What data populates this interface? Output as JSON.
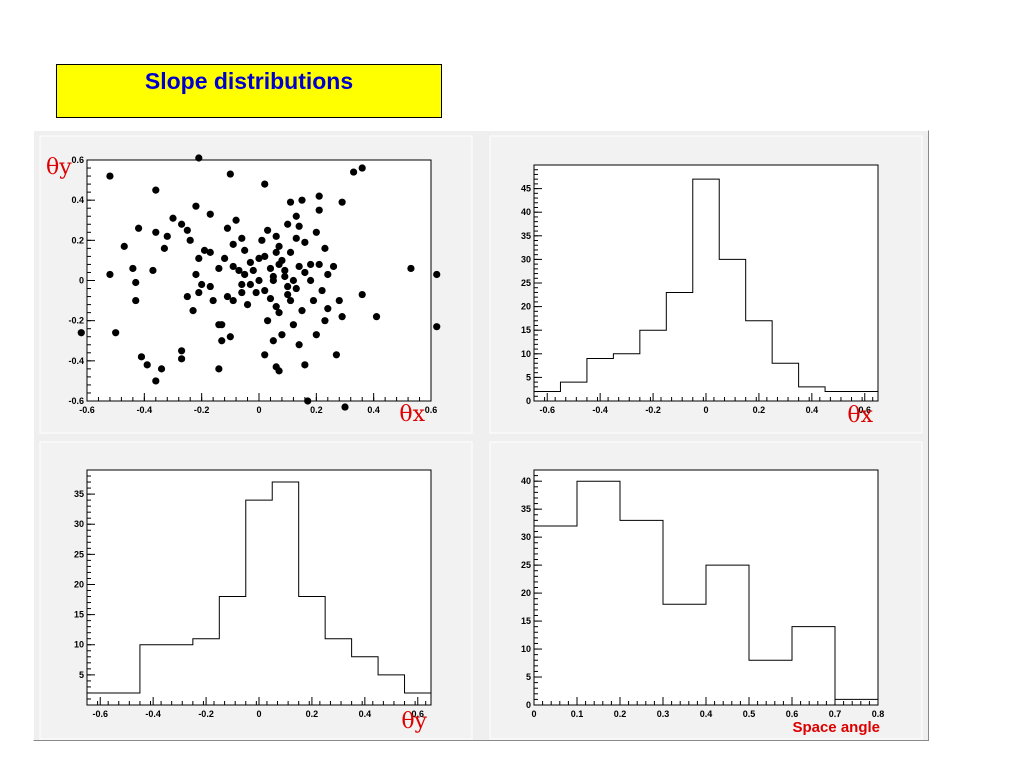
{
  "page": {
    "title": "Slope distributions"
  },
  "colors": {
    "title_bg": "#ffff00",
    "title_text": "#0000cc",
    "axis_title": "#dd0000",
    "pad_bg": "#efefef",
    "frame_bg": "#ffffff"
  },
  "chart_data": [
    {
      "id": "scatter",
      "type": "scatter",
      "title": "",
      "xlabel": "θx",
      "ylabel": "θy",
      "xlim": [
        -0.6,
        0.6
      ],
      "ylim": [
        -0.6,
        0.6
      ],
      "xticks": [
        -0.6,
        -0.4,
        -0.2,
        0,
        0.2,
        0.4,
        0.6
      ],
      "xtick_labels": [
        "-0.6",
        "-0.4",
        "-0.2",
        "0",
        "0.2",
        "0.4",
        "0.6"
      ],
      "yticks": [
        -0.6,
        -0.4,
        -0.2,
        0,
        0.2,
        0.4,
        0.6
      ],
      "ytick_labels": [
        "-0.6",
        "-0.4",
        "-0.2",
        "0",
        "0.2",
        "0.4",
        "0.6"
      ],
      "points": [
        [
          -0.52,
          0.52
        ],
        [
          -0.47,
          0.17
        ],
        [
          -0.42,
          0.26
        ],
        [
          -0.44,
          0.06
        ],
        [
          -0.43,
          -0.01
        ],
        [
          -0.43,
          -0.1
        ],
        [
          -0.52,
          0.03
        ],
        [
          -0.62,
          -0.26
        ],
        [
          -0.5,
          -0.26
        ],
        [
          -0.36,
          0.45
        ],
        [
          -0.36,
          0.24
        ],
        [
          -0.37,
          0.05
        ],
        [
          -0.32,
          0.22
        ],
        [
          -0.33,
          0.16
        ],
        [
          -0.3,
          0.31
        ],
        [
          -0.27,
          0.28
        ],
        [
          -0.25,
          0.25
        ],
        [
          -0.24,
          0.2
        ],
        [
          -0.21,
          0.61
        ],
        [
          -0.22,
          0.37
        ],
        [
          -0.17,
          0.33
        ],
        [
          -0.17,
          0.14
        ],
        [
          -0.21,
          0.11
        ],
        [
          -0.22,
          0.03
        ],
        [
          -0.2,
          -0.02
        ],
        [
          -0.17,
          -0.03
        ],
        [
          -0.21,
          -0.06
        ],
        [
          -0.25,
          -0.08
        ],
        [
          -0.23,
          -0.15
        ],
        [
          -0.27,
          -0.35
        ],
        [
          -0.27,
          -0.39
        ],
        [
          -0.14,
          -0.22
        ],
        [
          -0.13,
          -0.3
        ],
        [
          -0.14,
          -0.44
        ],
        [
          -0.34,
          -0.44
        ],
        [
          -0.39,
          -0.42
        ],
        [
          -0.41,
          -0.38
        ],
        [
          -0.36,
          -0.5
        ],
        [
          -0.1,
          0.53
        ],
        [
          -0.08,
          0.3
        ],
        [
          -0.11,
          0.26
        ],
        [
          -0.09,
          0.18
        ],
        [
          -0.12,
          0.11
        ],
        [
          -0.09,
          0.07
        ],
        [
          -0.11,
          -0.08
        ],
        [
          -0.09,
          -0.1
        ],
        [
          -0.06,
          -0.06
        ],
        [
          -0.13,
          -0.22
        ],
        [
          -0.1,
          -0.28
        ],
        [
          -0.06,
          0.21
        ],
        [
          -0.05,
          0.15
        ],
        [
          -0.03,
          0.09
        ],
        [
          -0.05,
          0.03
        ],
        [
          -0.03,
          -0.02
        ],
        [
          -0.06,
          -0.02
        ],
        [
          -0.02,
          0.05
        ],
        [
          0.0,
          0.11
        ],
        [
          0.01,
          0.2
        ],
        [
          0.02,
          0.48
        ],
        [
          0.03,
          0.25
        ],
        [
          0.04,
          0.06
        ],
        [
          0.05,
          0.02
        ],
        [
          0.06,
          0.14
        ],
        [
          0.07,
          0.08
        ],
        [
          0.08,
          0.1
        ],
        [
          0.09,
          0.05
        ],
        [
          0.02,
          -0.05
        ],
        [
          0.04,
          -0.09
        ],
        [
          0.06,
          -0.13
        ],
        [
          0.07,
          -0.16
        ],
        [
          0.03,
          -0.2
        ],
        [
          0.08,
          -0.27
        ],
        [
          0.05,
          -0.3
        ],
        [
          0.02,
          -0.37
        ],
        [
          0.06,
          -0.43
        ],
        [
          0.07,
          -0.45
        ],
        [
          0.11,
          0.39
        ],
        [
          0.13,
          0.32
        ],
        [
          0.15,
          0.4
        ],
        [
          0.14,
          0.27
        ],
        [
          0.13,
          0.21
        ],
        [
          0.16,
          0.19
        ],
        [
          0.11,
          0.14
        ],
        [
          0.14,
          0.07
        ],
        [
          0.16,
          0.04
        ],
        [
          0.12,
          0.0
        ],
        [
          0.13,
          -0.04
        ],
        [
          0.1,
          -0.07
        ],
        [
          0.11,
          -0.1
        ],
        [
          0.15,
          -0.15
        ],
        [
          0.12,
          -0.22
        ],
        [
          0.14,
          -0.32
        ],
        [
          0.16,
          -0.42
        ],
        [
          0.21,
          0.42
        ],
        [
          0.21,
          0.35
        ],
        [
          0.2,
          0.24
        ],
        [
          0.23,
          0.16
        ],
        [
          0.21,
          0.08
        ],
        [
          0.24,
          0.03
        ],
        [
          0.22,
          -0.05
        ],
        [
          0.19,
          -0.1
        ],
        [
          0.24,
          -0.14
        ],
        [
          0.23,
          -0.2
        ],
        [
          0.2,
          -0.27
        ],
        [
          0.17,
          -0.6
        ],
        [
          0.26,
          0.07
        ],
        [
          0.28,
          -0.1
        ],
        [
          0.29,
          -0.18
        ],
        [
          0.27,
          -0.37
        ],
        [
          0.3,
          -0.63
        ],
        [
          0.29,
          0.39
        ],
        [
          0.33,
          0.54
        ],
        [
          0.36,
          0.56
        ],
        [
          0.36,
          -0.07
        ],
        [
          0.41,
          -0.18
        ],
        [
          0.53,
          0.06
        ],
        [
          0.62,
          0.03
        ],
        [
          0.62,
          -0.23
        ],
        [
          0.05,
          0.0
        ],
        [
          -0.01,
          -0.06
        ],
        [
          0.09,
          0.02
        ],
        [
          -0.07,
          0.05
        ],
        [
          0.1,
          -0.03
        ],
        [
          -0.14,
          0.06
        ],
        [
          0.18,
          0.0
        ],
        [
          0.07,
          0.17
        ],
        [
          -0.19,
          0.15
        ],
        [
          0.0,
          0.0
        ],
        [
          0.02,
          0.12
        ],
        [
          -0.04,
          -0.12
        ],
        [
          0.18,
          0.08
        ],
        [
          0.1,
          0.28
        ],
        [
          -0.16,
          -0.1
        ],
        [
          0.06,
          0.22
        ]
      ]
    },
    {
      "id": "hist-thetax",
      "type": "bar",
      "title": "",
      "xlabel": "θx",
      "ylabel": "",
      "xlim": [
        -0.65,
        0.65
      ],
      "ylim": [
        0,
        50
      ],
      "xticks": [
        -0.6,
        -0.4,
        -0.2,
        0,
        0.2,
        0.4,
        0.6
      ],
      "xtick_labels": [
        "-0.6",
        "-0.4",
        "-0.2",
        "0",
        "0.2",
        "0.4",
        "0.6"
      ],
      "yticks": [
        0,
        5,
        10,
        15,
        20,
        25,
        30,
        35,
        40,
        45
      ],
      "ytick_labels": [
        "0",
        "5",
        "10",
        "15",
        "20",
        "25",
        "30",
        "35",
        "40",
        "45"
      ],
      "bin_edges": [
        -0.65,
        -0.55,
        -0.45,
        -0.35,
        -0.25,
        -0.15,
        -0.05,
        0.05,
        0.15,
        0.25,
        0.35,
        0.45,
        0.55,
        0.65
      ],
      "values": [
        2,
        4,
        9,
        10,
        15,
        23,
        47,
        30,
        17,
        8,
        3,
        2,
        2
      ]
    },
    {
      "id": "hist-thetay",
      "type": "bar",
      "title": "",
      "xlabel": "θy",
      "ylabel": "",
      "xlim": [
        -0.65,
        0.65
      ],
      "ylim": [
        0,
        39
      ],
      "xticks": [
        -0.6,
        -0.4,
        -0.2,
        0,
        0.2,
        0.4,
        0.6
      ],
      "xtick_labels": [
        "-0.6",
        "-0.4",
        "-0.2",
        "0",
        "0.2",
        "0.4",
        "0.6"
      ],
      "yticks": [
        5,
        10,
        15,
        20,
        25,
        30,
        35
      ],
      "ytick_labels": [
        "5",
        "10",
        "15",
        "20",
        "25",
        "30",
        "35"
      ],
      "bin_edges": [
        -0.65,
        -0.55,
        -0.45,
        -0.35,
        -0.25,
        -0.15,
        -0.05,
        0.05,
        0.15,
        0.25,
        0.35,
        0.45,
        0.55,
        0.65
      ],
      "values": [
        2,
        2,
        10,
        10,
        11,
        18,
        34,
        37,
        18,
        11,
        8,
        5,
        2
      ]
    },
    {
      "id": "hist-space-angle",
      "type": "bar",
      "title": "",
      "xlabel": "Space angle",
      "ylabel": "",
      "xlim": [
        0,
        0.8
      ],
      "ylim": [
        0,
        42
      ],
      "xticks": [
        0,
        0.1,
        0.2,
        0.3,
        0.4,
        0.5,
        0.6,
        0.7,
        0.8
      ],
      "xtick_labels": [
        "0",
        "0.1",
        "0.2",
        "0.3",
        "0.4",
        "0.5",
        "0.6",
        "0.7",
        "0.8"
      ],
      "yticks": [
        0,
        5,
        10,
        15,
        20,
        25,
        30,
        35,
        40
      ],
      "ytick_labels": [
        "0",
        "5",
        "10",
        "15",
        "20",
        "25",
        "30",
        "35",
        "40"
      ],
      "bin_edges": [
        0,
        0.1,
        0.2,
        0.3,
        0.4,
        0.5,
        0.6,
        0.7,
        0.8
      ],
      "values": [
        32,
        40,
        33,
        18,
        25,
        8,
        14,
        1
      ]
    }
  ]
}
